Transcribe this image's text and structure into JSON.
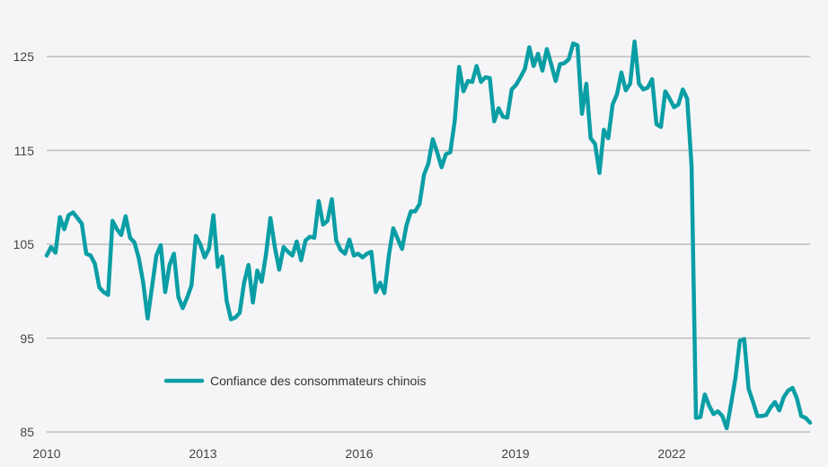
{
  "chart_data": {
    "type": "line",
    "title": "",
    "xlabel": "",
    "ylabel": "",
    "ylim": [
      85,
      125
    ],
    "xlim": [
      2010,
      2024.67
    ],
    "yticks": [
      "85",
      "95",
      "105",
      "115",
      "125"
    ],
    "xticks": [
      "2010",
      "2013",
      "2016",
      "2019",
      "2022"
    ],
    "grid": "horizontal",
    "legend_placement": "bottom-left",
    "x_start": "2010-01",
    "frequency": "monthly",
    "series": [
      {
        "name": "Confiance des consommateurs chinois",
        "color": "#0a9ea5",
        "values": [
          103.8,
          104.7,
          104.1,
          107.9,
          106.6,
          108.1,
          108.4,
          107.8,
          107.2,
          104.0,
          103.8,
          102.9,
          100.4,
          99.9,
          99.6,
          107.5,
          106.6,
          106.0,
          108.0,
          105.7,
          105.2,
          103.5,
          100.9,
          97.1,
          100.4,
          103.8,
          104.9,
          99.9,
          102.8,
          104.0,
          99.4,
          98.2,
          99.3,
          100.6,
          105.9,
          105.0,
          103.6,
          104.5,
          108.1,
          102.6,
          103.7,
          99.0,
          97.0,
          97.2,
          97.7,
          100.9,
          102.8,
          98.8,
          102.2,
          101.0,
          104.0,
          107.8,
          104.7,
          102.3,
          104.7,
          104.2,
          103.8,
          105.3,
          103.3,
          105.4,
          105.8,
          105.7,
          109.6,
          107.1,
          107.5,
          109.8,
          105.4,
          104.4,
          104.0,
          105.5,
          103.8,
          104.0,
          103.6,
          104.0,
          104.2,
          99.9,
          100.9,
          99.8,
          103.8,
          106.7,
          105.6,
          104.5,
          107.0,
          108.5,
          108.5,
          109.3,
          112.4,
          113.6,
          116.2,
          114.8,
          113.2,
          114.6,
          114.8,
          118.1,
          123.9,
          121.3,
          122.4,
          122.3,
          124.0,
          122.3,
          122.8,
          122.7,
          118.1,
          119.5,
          118.6,
          118.5,
          121.5,
          122.0,
          122.8,
          123.7,
          126.0,
          124.0,
          125.3,
          123.5,
          125.8,
          124.2,
          122.4,
          124.2,
          124.3,
          124.7,
          126.4,
          126.2,
          118.9,
          122.1,
          116.3,
          115.7,
          112.6,
          117.2,
          116.3,
          119.9,
          121.0,
          123.3,
          121.4,
          122.1,
          126.6,
          122.1,
          121.5,
          121.7,
          122.6,
          117.8,
          117.5,
          121.3,
          120.5,
          119.6,
          119.9,
          121.5,
          120.5,
          113.3,
          86.5,
          86.6,
          89.0,
          87.8,
          86.9,
          87.2,
          86.7,
          85.4,
          88.0,
          90.8,
          94.7,
          94.9,
          89.6,
          88.2,
          86.7,
          86.7,
          86.8,
          87.6,
          88.2,
          87.3,
          88.7,
          89.4,
          89.7,
          88.6,
          86.7,
          86.5,
          86.0
        ]
      }
    ]
  }
}
